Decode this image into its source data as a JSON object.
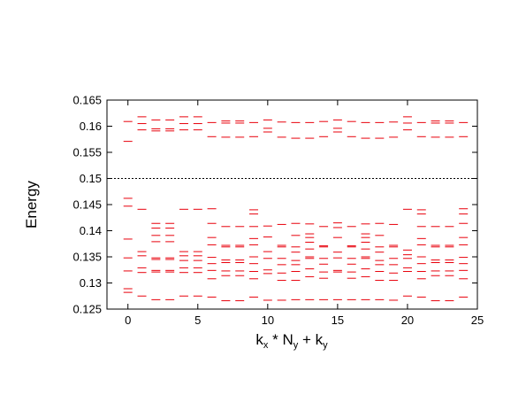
{
  "chart_data": {
    "type": "scatter",
    "marker": "horizontal-dash",
    "xlabel": {
      "main": "k",
      "sub1": "x",
      "mid": " * N",
      "sub2": "y",
      "end": " + k",
      "sub3": "y"
    },
    "ylabel": "Energy",
    "xlim": [
      -1.5,
      25
    ],
    "ylim": [
      0.125,
      0.165
    ],
    "xticks": [
      0,
      5,
      10,
      15,
      20,
      25
    ],
    "xtick_labels": [
      "0",
      "5",
      "10",
      "15",
      "20",
      "25"
    ],
    "yticks": [
      0.125,
      0.13,
      0.135,
      0.14,
      0.145,
      0.15,
      0.155,
      0.16,
      0.165
    ],
    "ytick_labels": [
      "0.125",
      "0.13",
      "0.135",
      "0.14",
      "0.145",
      "0.15",
      "0.155",
      "0.16",
      "0.165"
    ],
    "grid": false,
    "reference_line": {
      "y": 0.15,
      "style": "dotted",
      "color": "#000000"
    },
    "series_color": "#e8000b",
    "points": [
      {
        "x": 0,
        "y": [
          0.1609,
          0.1571,
          0.1462,
          0.1447,
          0.1384,
          0.1348,
          0.1323,
          0.1289,
          0.1282
        ]
      },
      {
        "x": 1,
        "y": [
          0.1618,
          0.1605,
          0.1593,
          0.1441,
          0.136,
          0.1352,
          0.1329,
          0.132,
          0.1275
        ]
      },
      {
        "x": 2,
        "y": [
          0.1612,
          0.1595,
          0.1591,
          0.1414,
          0.1405,
          0.1391,
          0.1379,
          0.1348,
          0.1345,
          0.1324,
          0.1321,
          0.1268
        ]
      },
      {
        "x": 3,
        "y": [
          0.1612,
          0.1595,
          0.1591,
          0.1414,
          0.1405,
          0.1391,
          0.1379,
          0.1348,
          0.1345,
          0.1324,
          0.1321,
          0.1268
        ]
      },
      {
        "x": 4,
        "y": [
          0.1618,
          0.1605,
          0.1593,
          0.1441,
          0.136,
          0.1352,
          0.1343,
          0.1329,
          0.132,
          0.1275
        ]
      },
      {
        "x": 5,
        "y": [
          0.1618,
          0.1605,
          0.1593,
          0.1441,
          0.136,
          0.1352,
          0.1343,
          0.1329,
          0.132,
          0.1275
        ]
      },
      {
        "x": 6,
        "y": [
          0.1607,
          0.158,
          0.1442,
          0.1414,
          0.1387,
          0.1373,
          0.1349,
          0.1337,
          0.1324,
          0.1308,
          0.1273
        ]
      },
      {
        "x": 7,
        "y": [
          0.161,
          0.1606,
          0.1579,
          0.1408,
          0.1372,
          0.1369,
          0.1344,
          0.1339,
          0.1323,
          0.1314,
          0.1266
        ]
      },
      {
        "x": 8,
        "y": [
          0.161,
          0.1606,
          0.1579,
          0.1408,
          0.1372,
          0.1369,
          0.1344,
          0.1339,
          0.1323,
          0.1314,
          0.1266
        ]
      },
      {
        "x": 9,
        "y": [
          0.1607,
          0.158,
          0.144,
          0.1432,
          0.1408,
          0.1385,
          0.1373,
          0.135,
          0.1337,
          0.1322,
          0.1308,
          0.1273
        ]
      },
      {
        "x": 10,
        "y": [
          0.1612,
          0.1596,
          0.1589,
          0.1409,
          0.1388,
          0.136,
          0.1347,
          0.1325,
          0.1318,
          0.1267
        ]
      },
      {
        "x": 11,
        "y": [
          0.1608,
          0.1579,
          0.1412,
          0.1372,
          0.1369,
          0.1347,
          0.1335,
          0.1319,
          0.1305,
          0.1267
        ]
      },
      {
        "x": 12,
        "y": [
          0.1607,
          0.1577,
          0.1414,
          0.1391,
          0.1369,
          0.1359,
          0.1343,
          0.1335,
          0.1322,
          0.1305,
          0.1268
        ]
      },
      {
        "x": 13,
        "y": [
          0.1607,
          0.1577,
          0.1413,
          0.1394,
          0.1387,
          0.1378,
          0.1365,
          0.135,
          0.1347,
          0.1327,
          0.1312,
          0.1268
        ]
      },
      {
        "x": 14,
        "y": [
          0.1609,
          0.158,
          0.1408,
          0.1371,
          0.1369,
          0.1347,
          0.1336,
          0.1321,
          0.1309,
          0.1268
        ]
      },
      {
        "x": 15,
        "y": [
          0.1612,
          0.1596,
          0.1589,
          0.1415,
          0.1406,
          0.1387,
          0.1359,
          0.1348,
          0.1324,
          0.1321,
          0.1268
        ]
      },
      {
        "x": 16,
        "y": [
          0.1609,
          0.158,
          0.1408,
          0.1371,
          0.1369,
          0.1347,
          0.1336,
          0.1321,
          0.1309,
          0.1268
        ]
      },
      {
        "x": 17,
        "y": [
          0.1607,
          0.1577,
          0.1413,
          0.1394,
          0.1387,
          0.1378,
          0.1365,
          0.135,
          0.1347,
          0.1327,
          0.1312,
          0.1268
        ]
      },
      {
        "x": 18,
        "y": [
          0.1607,
          0.1577,
          0.1414,
          0.1391,
          0.1369,
          0.1359,
          0.1343,
          0.1335,
          0.1322,
          0.1305,
          0.1268
        ]
      },
      {
        "x": 19,
        "y": [
          0.1608,
          0.1579,
          0.1412,
          0.1372,
          0.1369,
          0.1347,
          0.1335,
          0.1319,
          0.1305,
          0.1267
        ]
      },
      {
        "x": 20,
        "y": [
          0.1618,
          0.1606,
          0.1593,
          0.1441,
          0.1363,
          0.1354,
          0.1347,
          0.1329,
          0.1322,
          0.1275
        ]
      },
      {
        "x": 21,
        "y": [
          0.1607,
          0.158,
          0.144,
          0.1432,
          0.1408,
          0.1385,
          0.1373,
          0.135,
          0.1337,
          0.1322,
          0.1308,
          0.1273
        ]
      },
      {
        "x": 22,
        "y": [
          0.161,
          0.1606,
          0.1579,
          0.1408,
          0.1372,
          0.1369,
          0.1344,
          0.1339,
          0.1323,
          0.1314,
          0.1266
        ]
      },
      {
        "x": 23,
        "y": [
          0.161,
          0.1606,
          0.1579,
          0.1408,
          0.1372,
          0.1369,
          0.1344,
          0.1339,
          0.1323,
          0.1314,
          0.1266
        ]
      },
      {
        "x": 24,
        "y": [
          0.1607,
          0.158,
          0.1442,
          0.1432,
          0.1414,
          0.1387,
          0.1373,
          0.1349,
          0.1337,
          0.1324,
          0.1308,
          0.1273
        ]
      }
    ]
  }
}
